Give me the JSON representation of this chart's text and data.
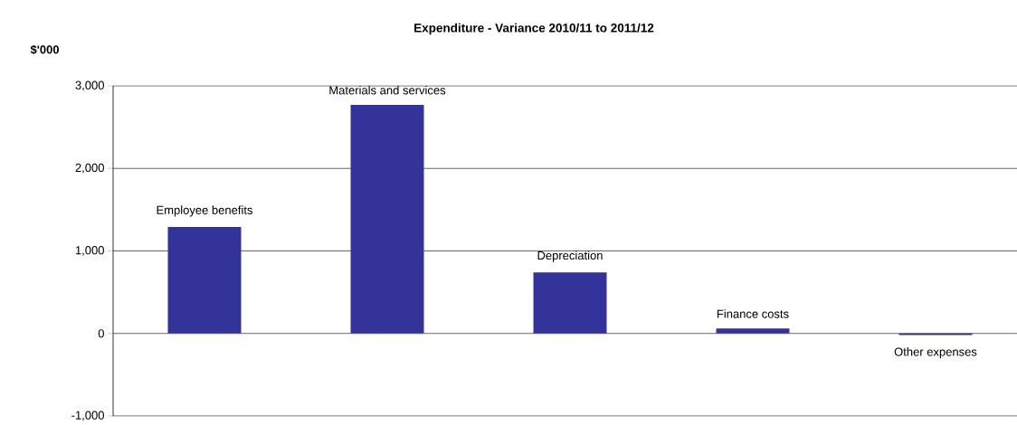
{
  "chart_data": {
    "type": "bar",
    "title": "Expenditure - Variance 2010/11 to 2011/12",
    "ylabel": "$'000",
    "categories": [
      "Employee benefits",
      "Materials and services",
      "Depreciation",
      "Finance costs",
      "Other expenses"
    ],
    "values": [
      1290,
      2770,
      740,
      60,
      -20
    ],
    "color": "#333399",
    "ylim": [
      -1000,
      3000
    ],
    "yticks": [
      {
        "value": -1000,
        "label": "-1,000"
      },
      {
        "value": 0,
        "label": "0"
      },
      {
        "value": 1000,
        "label": "1,000"
      },
      {
        "value": 2000,
        "label": "2,000"
      },
      {
        "value": 3000,
        "label": "3,000"
      }
    ],
    "grid": "y",
    "tick_labels": "y"
  }
}
